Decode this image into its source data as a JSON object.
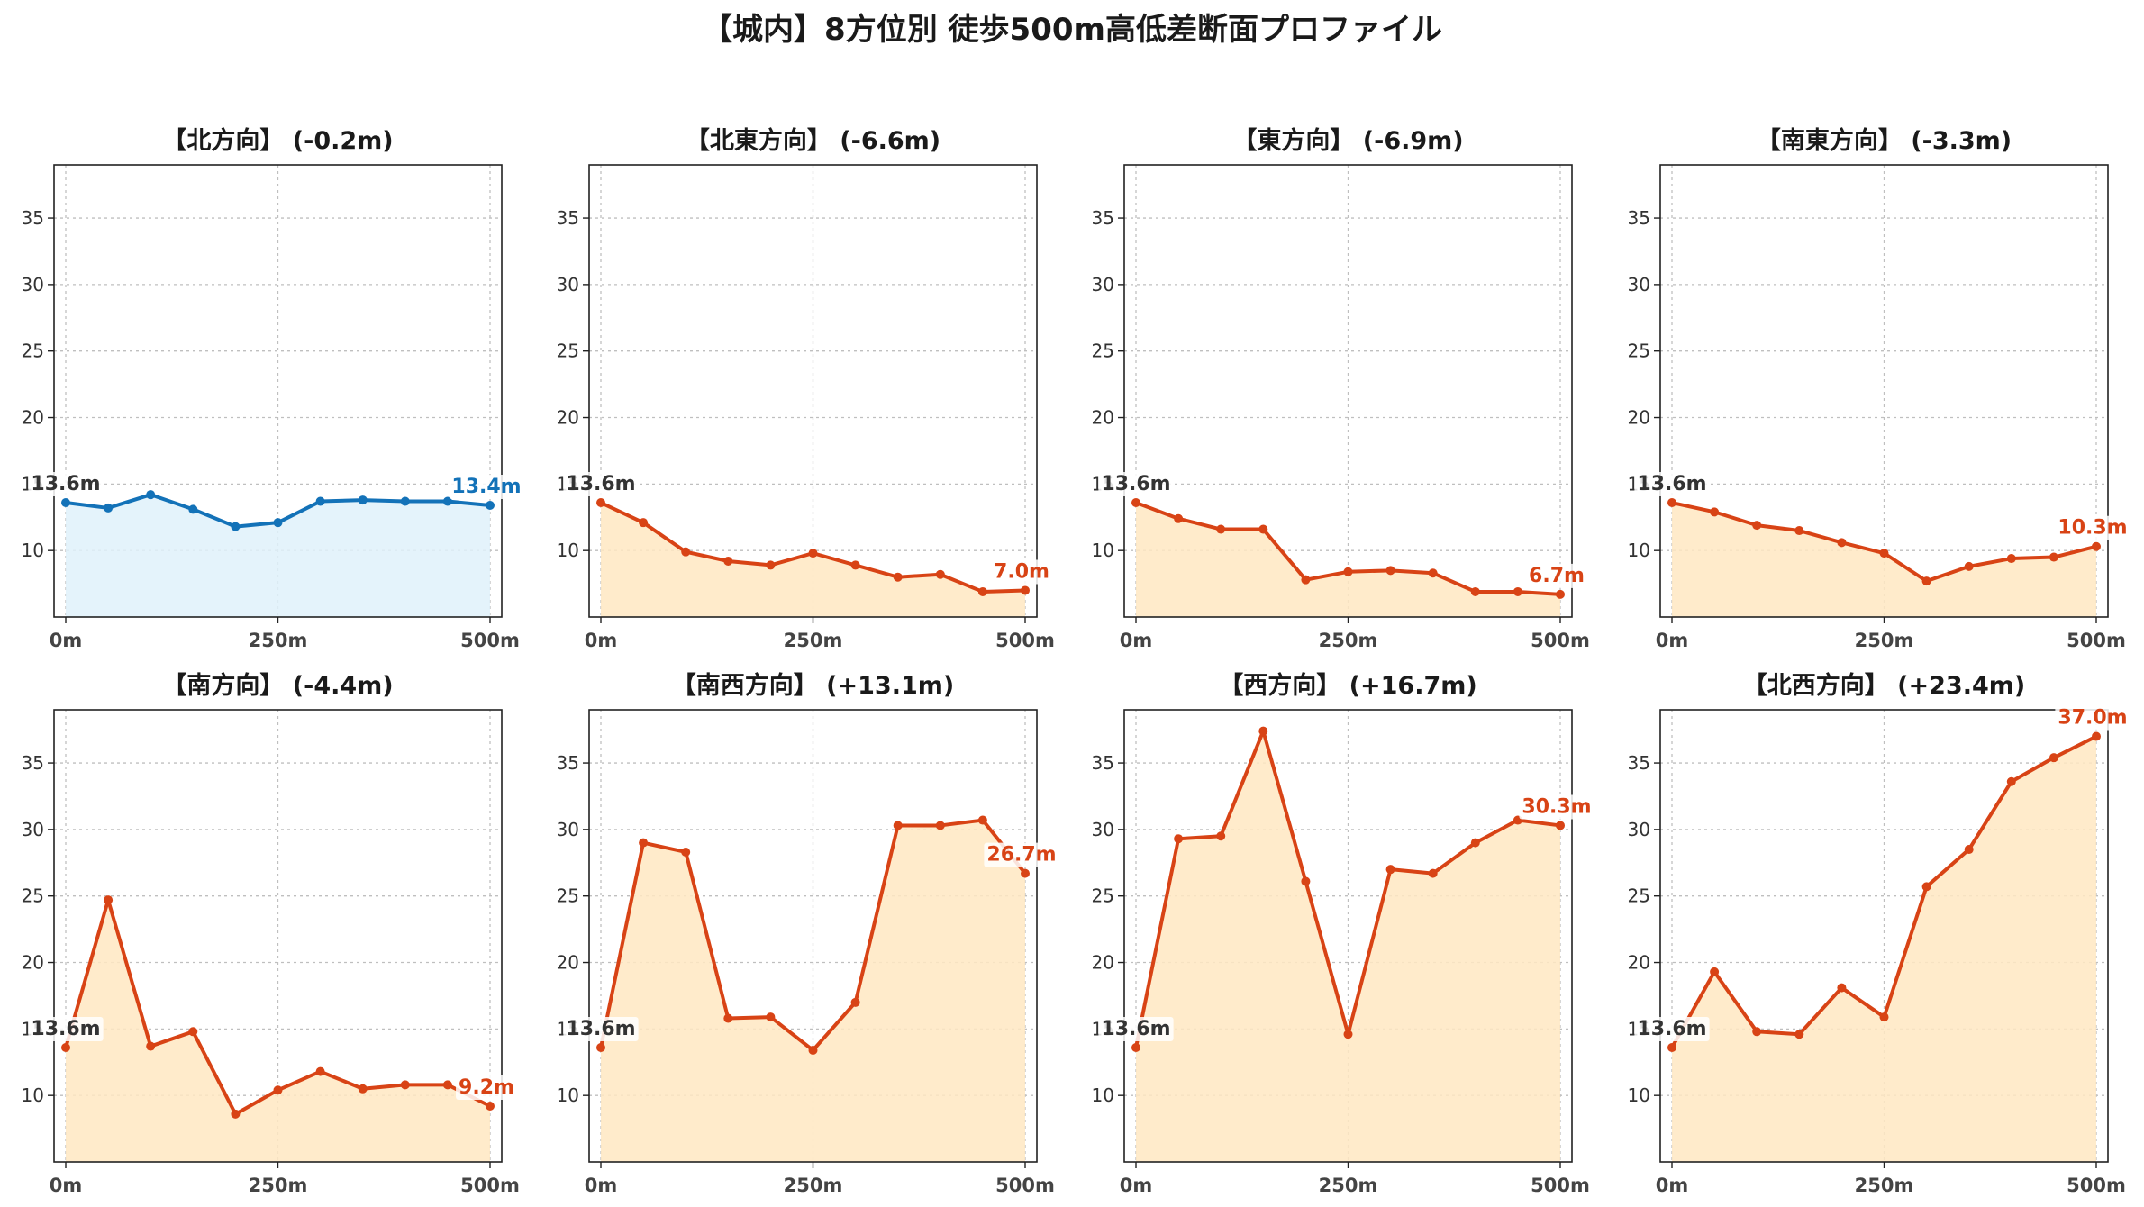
{
  "figure": {
    "title": "【城内】8方位別 徒歩500m高低差断面プロファイル"
  },
  "colors": {
    "uphill_line": "#d84315",
    "uphill_fill": "#ffe7c2",
    "downhill_line": "#1372b8",
    "downhill_fill": "#dff1fa",
    "start_label": "#333333"
  },
  "chart_data": [
    {
      "type": "area",
      "title": "【北方向】 (-0.2m)",
      "style": "downhill",
      "x": [
        0,
        50,
        100,
        150,
        200,
        250,
        300,
        350,
        400,
        450,
        500
      ],
      "y": [
        13.6,
        13.2,
        14.2,
        13.1,
        11.8,
        12.1,
        13.7,
        13.8,
        13.7,
        13.7,
        13.4
      ],
      "start_label": "13.6m",
      "end_label": "13.4m",
      "xticks": [
        "0m",
        "250m",
        "500m"
      ],
      "yticks": [
        10,
        15,
        20,
        25,
        30,
        35
      ],
      "ylim": [
        5,
        39
      ],
      "grid": true
    },
    {
      "type": "area",
      "title": "【北東方向】 (-6.6m)",
      "style": "uphill",
      "x": [
        0,
        50,
        100,
        150,
        200,
        250,
        300,
        350,
        400,
        450,
        500
      ],
      "y": [
        13.6,
        12.1,
        9.9,
        9.2,
        8.9,
        9.8,
        8.9,
        8.0,
        8.2,
        6.9,
        7.0
      ],
      "start_label": "13.6m",
      "end_label": "7.0m",
      "xticks": [
        "0m",
        "250m",
        "500m"
      ],
      "yticks": [
        10,
        15,
        20,
        25,
        30,
        35
      ],
      "ylim": [
        5,
        39
      ],
      "grid": true
    },
    {
      "type": "area",
      "title": "【東方向】 (-6.9m)",
      "style": "uphill",
      "x": [
        0,
        50,
        100,
        150,
        200,
        250,
        300,
        350,
        400,
        450,
        500
      ],
      "y": [
        13.6,
        12.4,
        11.6,
        11.6,
        7.8,
        8.4,
        8.5,
        8.3,
        6.9,
        6.9,
        6.7
      ],
      "start_label": "13.6m",
      "end_label": "6.7m",
      "xticks": [
        "0m",
        "250m",
        "500m"
      ],
      "yticks": [
        10,
        15,
        20,
        25,
        30,
        35
      ],
      "ylim": [
        5,
        39
      ],
      "grid": true
    },
    {
      "type": "area",
      "title": "【南東方向】 (-3.3m)",
      "style": "uphill",
      "x": [
        0,
        50,
        100,
        150,
        200,
        250,
        300,
        350,
        400,
        450,
        500
      ],
      "y": [
        13.6,
        12.9,
        11.9,
        11.5,
        10.6,
        9.8,
        7.7,
        8.8,
        9.4,
        9.5,
        10.3
      ],
      "start_label": "13.6m",
      "end_label": "10.3m",
      "xticks": [
        "0m",
        "250m",
        "500m"
      ],
      "yticks": [
        10,
        15,
        20,
        25,
        30,
        35
      ],
      "ylim": [
        5,
        39
      ],
      "grid": true
    },
    {
      "type": "area",
      "title": "【南方向】 (-4.4m)",
      "style": "uphill",
      "x": [
        0,
        50,
        100,
        150,
        200,
        250,
        300,
        350,
        400,
        450,
        500
      ],
      "y": [
        13.6,
        24.7,
        13.7,
        14.8,
        8.6,
        10.4,
        11.8,
        10.5,
        10.8,
        10.8,
        9.2
      ],
      "start_label": "13.6m",
      "end_label": "9.2m",
      "xticks": [
        "0m",
        "250m",
        "500m"
      ],
      "yticks": [
        10,
        15,
        20,
        25,
        30,
        35
      ],
      "ylim": [
        5,
        39
      ],
      "grid": true
    },
    {
      "type": "area",
      "title": "【南西方向】 (+13.1m)",
      "style": "uphill",
      "x": [
        0,
        50,
        100,
        150,
        200,
        250,
        300,
        350,
        400,
        450,
        500
      ],
      "y": [
        13.6,
        29.0,
        28.3,
        15.8,
        15.9,
        13.4,
        17.0,
        30.3,
        30.3,
        30.7,
        26.7
      ],
      "start_label": "13.6m",
      "end_label": "26.7m",
      "xticks": [
        "0m",
        "250m",
        "500m"
      ],
      "yticks": [
        10,
        15,
        20,
        25,
        30,
        35
      ],
      "ylim": [
        5,
        39
      ],
      "grid": true
    },
    {
      "type": "area",
      "title": "【西方向】 (+16.7m)",
      "style": "uphill",
      "x": [
        0,
        50,
        100,
        150,
        200,
        250,
        300,
        350,
        400,
        450,
        500
      ],
      "y": [
        13.6,
        29.3,
        29.5,
        37.4,
        26.1,
        14.6,
        27.0,
        26.7,
        29.0,
        30.7,
        30.3
      ],
      "start_label": "13.6m",
      "end_label": "30.3m",
      "xticks": [
        "0m",
        "250m",
        "500m"
      ],
      "yticks": [
        10,
        15,
        20,
        25,
        30,
        35
      ],
      "ylim": [
        5,
        39
      ],
      "grid": true
    },
    {
      "type": "area",
      "title": "【北西方向】 (+23.4m)",
      "style": "uphill",
      "x": [
        0,
        50,
        100,
        150,
        200,
        250,
        300,
        350,
        400,
        450,
        500
      ],
      "y": [
        13.6,
        19.3,
        14.8,
        14.6,
        18.1,
        15.9,
        25.7,
        28.5,
        33.6,
        35.4,
        37.0
      ],
      "start_label": "13.6m",
      "end_label": "37.0m",
      "xticks": [
        "0m",
        "250m",
        "500m"
      ],
      "yticks": [
        10,
        15,
        20,
        25,
        30,
        35
      ],
      "ylim": [
        5,
        39
      ],
      "grid": true
    }
  ]
}
